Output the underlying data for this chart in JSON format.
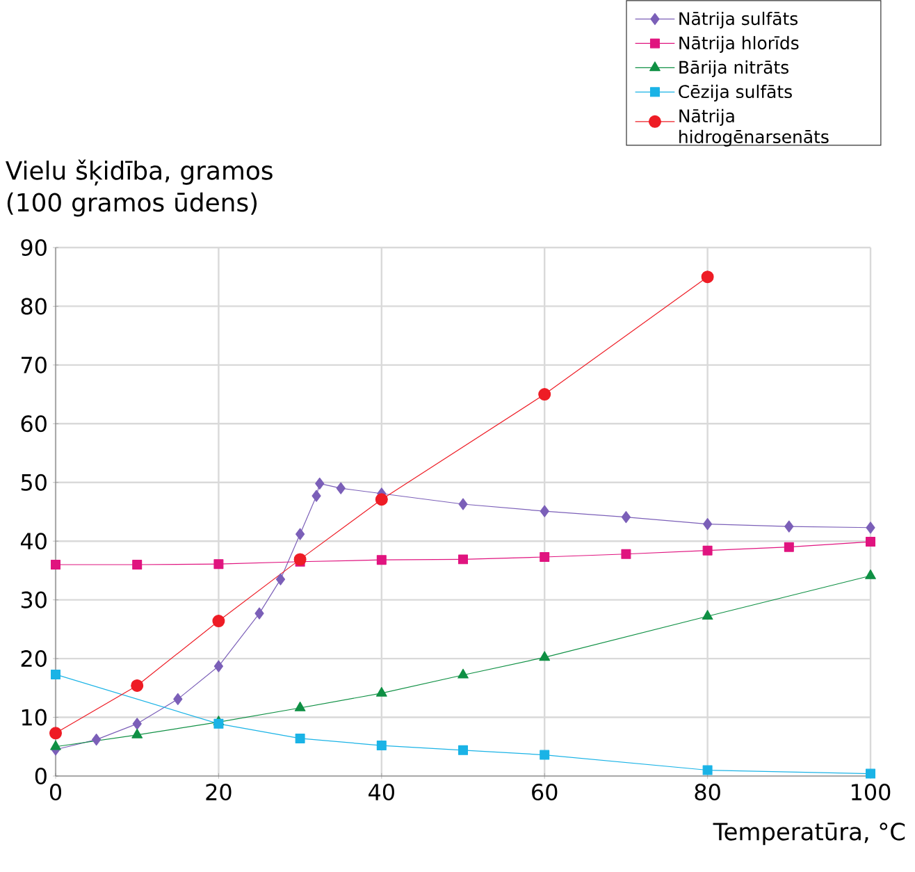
{
  "chart_data": {
    "type": "line",
    "xlabel": "Temperatūra, °C",
    "ylabel": "Vielu šķidība, gramos (100 gramos ūdens)",
    "xlim": [
      0,
      100
    ],
    "ylim": [
      0,
      90
    ],
    "xticks": [
      0,
      20,
      40,
      60,
      80,
      100
    ],
    "yticks": [
      0,
      10,
      20,
      30,
      40,
      50,
      60,
      70,
      80,
      90
    ],
    "grid": true,
    "legend": "top right",
    "line_style": "solid",
    "series": [
      {
        "name": "Nātrija sulfāts",
        "color": "#7b5fb8",
        "marker": "diamond",
        "x": [
          0,
          5,
          10,
          15,
          20,
          25,
          27.6,
          30,
          32,
          32.4,
          35,
          40,
          50,
          60,
          70,
          80,
          90,
          100
        ],
        "values": [
          4.5,
          6.2,
          8.9,
          13.1,
          18.7,
          27.7,
          33.5,
          41.2,
          47.7,
          49.8,
          49,
          48.1,
          46.3,
          45.1,
          44.1,
          42.9,
          42.5,
          42.3
        ]
      },
      {
        "name": "Nātrija hlorīds",
        "color": "#e0147f",
        "marker": "square",
        "x": [
          0,
          10,
          20,
          30,
          40,
          50,
          60,
          70,
          80,
          90,
          100
        ],
        "values": [
          36,
          36,
          36.1,
          36.5,
          36.8,
          36.9,
          37.3,
          37.8,
          38.4,
          39,
          39.9
        ]
      },
      {
        "name": "Bārija nitrāts",
        "color": "#0f9044",
        "marker": "triangle",
        "x": [
          0,
          10,
          20,
          30,
          40,
          50,
          60,
          80,
          100
        ],
        "values": [
          5,
          7,
          9.2,
          11.6,
          14.1,
          17.2,
          20.2,
          27.2,
          34.1
        ]
      },
      {
        "name": "Cēzija sulfāts",
        "color": "#1ab3e6",
        "marker": "square",
        "x": [
          0,
          20,
          30,
          40,
          50,
          60,
          80,
          100
        ],
        "values": [
          17.3,
          8.9,
          6.4,
          5.2,
          4.4,
          3.6,
          1,
          0.4
        ]
      },
      {
        "name": "Nātrija hidrogēnarsenāts",
        "color": "#ee1c25",
        "marker": "circle",
        "x": [
          0,
          10,
          20,
          30,
          40,
          60,
          80
        ],
        "values": [
          7.3,
          15.4,
          26.4,
          36.9,
          47.1,
          65,
          85
        ]
      }
    ]
  }
}
